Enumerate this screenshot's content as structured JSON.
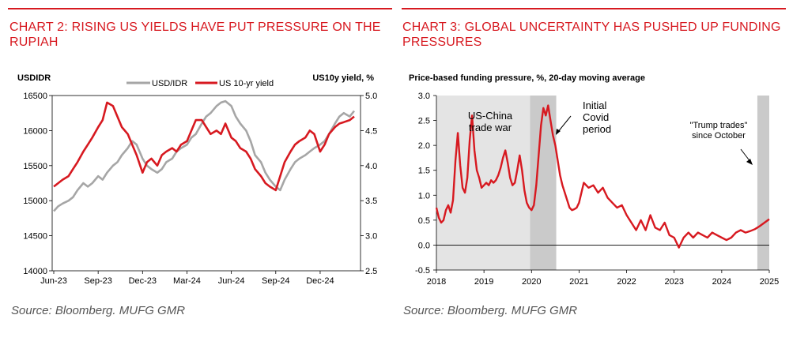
{
  "left_panel": {
    "title": "CHART 2: RISING US YIELDS HAVE PUT PRESSURE ON THE RUPIAH",
    "source": "Source: Bloomberg. MUFG GMR"
  },
  "right_panel": {
    "title": "CHART 3: GLOBAL UNCERTAINTY HAS PUSHED UP FUNDING PRESSURES",
    "source": "Source: Bloomberg. MUFG GMR"
  },
  "colors": {
    "accent_red": "#d71920",
    "series_grey": "#a6a6a6",
    "shade_light": "#e4e4e4",
    "shade_dark": "#cacaca"
  },
  "chart_data": [
    {
      "type": "line",
      "left_axis_title": "USDIDR",
      "right_axis_title": "US10y yield, %",
      "x_ticks": [
        "Jun-23",
        "Sep-23",
        "Dec-23",
        "Mar-24",
        "Jun-24",
        "Sep-24",
        "Dec-24"
      ],
      "y_left": {
        "ticks": [
          "14000",
          "14500",
          "15000",
          "15500",
          "16000",
          "16500"
        ],
        "range": [
          14000,
          16500
        ]
      },
      "y_right": {
        "ticks": [
          "2.5",
          "3.0",
          "3.5",
          "4.0",
          "4.5",
          "5.0"
        ],
        "range": [
          2.5,
          5.0
        ]
      },
      "legend_position": "top-center",
      "grid": false,
      "series": [
        {
          "name": "USD/IDR",
          "axis": "left",
          "color": "#a6a6a6",
          "x": [
            0,
            0.3,
            0.6,
            1,
            1.3,
            1.6,
            2,
            2.3,
            2.6,
            3,
            3.3,
            3.6,
            4,
            4.3,
            4.6,
            5,
            5.3,
            5.6,
            6,
            6.3,
            6.6,
            7,
            7.3,
            7.6,
            8,
            8.3,
            8.6,
            9,
            9.3,
            9.6,
            10,
            10.3,
            10.6,
            11,
            11.3,
            11.6,
            12,
            12.3,
            12.6,
            13,
            13.3,
            13.6,
            14,
            14.3,
            14.6,
            15,
            15.3,
            15.6,
            16,
            16.3,
            16.6,
            17,
            17.3,
            17.6,
            18,
            18.3,
            18.6,
            19,
            19.3,
            19.6,
            20,
            20.3
          ],
          "values": [
            14850,
            14920,
            14960,
            15000,
            15050,
            15150,
            15250,
            15200,
            15250,
            15350,
            15300,
            15400,
            15500,
            15550,
            15650,
            15750,
            15850,
            15800,
            15600,
            15500,
            15450,
            15400,
            15450,
            15550,
            15600,
            15700,
            15750,
            15800,
            15900,
            15950,
            16100,
            16200,
            16250,
            16350,
            16400,
            16420,
            16350,
            16200,
            16100,
            16000,
            15850,
            15650,
            15550,
            15400,
            15300,
            15200,
            15150,
            15300,
            15450,
            15550,
            15600,
            15650,
            15700,
            15750,
            15800,
            15850,
            15950,
            16100,
            16200,
            16250,
            16200,
            16280
          ]
        },
        {
          "name": "US 10-yr yield",
          "axis": "right",
          "color": "#d71920",
          "x": [
            0,
            0.3,
            0.6,
            1,
            1.3,
            1.6,
            2,
            2.3,
            2.6,
            3,
            3.3,
            3.6,
            4,
            4.3,
            4.6,
            5,
            5.3,
            5.6,
            6,
            6.3,
            6.6,
            7,
            7.3,
            7.6,
            8,
            8.3,
            8.6,
            9,
            9.3,
            9.6,
            10,
            10.3,
            10.6,
            11,
            11.3,
            11.6,
            12,
            12.3,
            12.6,
            13,
            13.3,
            13.6,
            14,
            14.3,
            14.6,
            15,
            15.3,
            15.6,
            16,
            16.3,
            16.6,
            17,
            17.3,
            17.6,
            18,
            18.3,
            18.6,
            19,
            19.3,
            19.6,
            20,
            20.3
          ],
          "values": [
            3.7,
            3.75,
            3.8,
            3.85,
            3.95,
            4.05,
            4.2,
            4.3,
            4.4,
            4.55,
            4.65,
            4.9,
            4.85,
            4.7,
            4.55,
            4.45,
            4.3,
            4.15,
            3.9,
            4.05,
            4.1,
            4.0,
            4.15,
            4.2,
            4.25,
            4.2,
            4.3,
            4.35,
            4.5,
            4.65,
            4.65,
            4.55,
            4.45,
            4.5,
            4.45,
            4.6,
            4.4,
            4.35,
            4.25,
            4.2,
            4.1,
            3.95,
            3.85,
            3.75,
            3.7,
            3.65,
            3.85,
            4.05,
            4.2,
            4.3,
            4.35,
            4.4,
            4.5,
            4.45,
            4.2,
            4.3,
            4.45,
            4.55,
            4.6,
            4.62,
            4.65,
            4.7
          ]
        }
      ]
    },
    {
      "type": "line",
      "ylabel": "Price-based funding pressure, %, 20-day moving average",
      "x_ticks": [
        "2018",
        "2019",
        "2020",
        "2021",
        "2022",
        "2023",
        "2024",
        "2025"
      ],
      "y_ticks": [
        "-0.5",
        "0.0",
        "0.5",
        "1.0",
        "1.5",
        "2.0",
        "2.5",
        "3.0"
      ],
      "ylim": [
        -0.5,
        3.0
      ],
      "grid": false,
      "shaded_periods": [
        {
          "label": "US-China trade war",
          "x_range": [
            2018.0,
            2019.97
          ],
          "shade": "light"
        },
        {
          "label": "Initial Covid period",
          "x_range": [
            2019.97,
            2020.52
          ],
          "shade": "dark"
        },
        {
          "label": "\"Trump trades\" since October",
          "x_range": [
            2024.75,
            2025.0
          ],
          "shade": "dark"
        }
      ],
      "annotations": [
        {
          "text_lines": [
            "US-China",
            "trade war"
          ]
        },
        {
          "text_lines": [
            "Initial",
            "Covid",
            "period"
          ]
        },
        {
          "text_lines": [
            "\"Trump trades\"",
            "since October"
          ]
        }
      ],
      "series": [
        {
          "name": "",
          "color": "#d71920",
          "x": [
            2018.0,
            2018.05,
            2018.1,
            2018.15,
            2018.2,
            2018.25,
            2018.3,
            2018.35,
            2018.4,
            2018.45,
            2018.5,
            2018.55,
            2018.6,
            2018.65,
            2018.7,
            2018.75,
            2018.8,
            2018.85,
            2018.9,
            2018.95,
            2019.0,
            2019.05,
            2019.1,
            2019.15,
            2019.2,
            2019.25,
            2019.3,
            2019.35,
            2019.4,
            2019.45,
            2019.5,
            2019.55,
            2019.6,
            2019.65,
            2019.7,
            2019.75,
            2019.8,
            2019.85,
            2019.9,
            2019.95,
            2020.0,
            2020.05,
            2020.1,
            2020.15,
            2020.2,
            2020.25,
            2020.3,
            2020.35,
            2020.4,
            2020.45,
            2020.5,
            2020.55,
            2020.6,
            2020.65,
            2020.7,
            2020.75,
            2020.8,
            2020.85,
            2020.9,
            2020.95,
            2021.0,
            2021.1,
            2021.2,
            2021.3,
            2021.4,
            2021.5,
            2021.6,
            2021.7,
            2021.8,
            2021.9,
            2022.0,
            2022.1,
            2022.2,
            2022.3,
            2022.4,
            2022.5,
            2022.6,
            2022.7,
            2022.8,
            2022.9,
            2023.0,
            2023.1,
            2023.2,
            2023.3,
            2023.4,
            2023.5,
            2023.6,
            2023.7,
            2023.8,
            2023.9,
            2024.0,
            2024.1,
            2024.2,
            2024.3,
            2024.4,
            2024.5,
            2024.6,
            2024.7,
            2024.8,
            2024.9,
            2025.0
          ],
          "values": [
            0.75,
            0.55,
            0.45,
            0.5,
            0.7,
            0.8,
            0.65,
            0.9,
            1.7,
            2.25,
            1.6,
            1.15,
            1.05,
            1.35,
            2.1,
            2.6,
            1.9,
            1.5,
            1.35,
            1.15,
            1.2,
            1.25,
            1.2,
            1.3,
            1.25,
            1.3,
            1.4,
            1.55,
            1.75,
            1.9,
            1.65,
            1.35,
            1.2,
            1.25,
            1.5,
            1.8,
            1.5,
            1.1,
            0.85,
            0.75,
            0.7,
            0.8,
            1.2,
            1.8,
            2.4,
            2.75,
            2.6,
            2.8,
            2.5,
            2.2,
            2.0,
            1.7,
            1.4,
            1.2,
            1.05,
            0.9,
            0.75,
            0.7,
            0.72,
            0.75,
            0.85,
            1.25,
            1.15,
            1.2,
            1.05,
            1.15,
            0.95,
            0.85,
            0.75,
            0.8,
            0.6,
            0.45,
            0.3,
            0.5,
            0.3,
            0.6,
            0.35,
            0.3,
            0.45,
            0.2,
            0.15,
            -0.05,
            0.15,
            0.25,
            0.15,
            0.25,
            0.2,
            0.15,
            0.25,
            0.2,
            0.15,
            0.1,
            0.15,
            0.25,
            0.3,
            0.25,
            0.28,
            0.32,
            0.38,
            0.45,
            0.52
          ]
        }
      ]
    }
  ]
}
